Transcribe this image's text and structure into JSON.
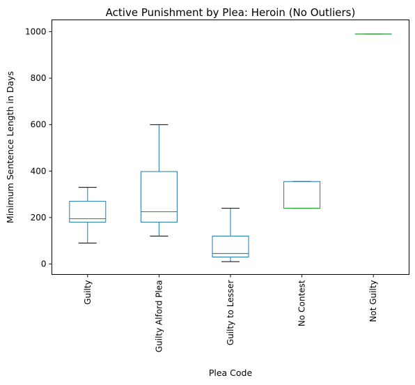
{
  "chart_data": {
    "type": "box",
    "title": "Active Punishment by Plea: Heroin (No Outliers)",
    "xlabel": "Plea Code",
    "ylabel": "Minimum Sentence Length in Days",
    "categories": [
      "Guilty",
      "Guilty Alford Plea",
      "Guilty to Lesser",
      "No Contest",
      "Not Guilty"
    ],
    "ylim": [
      -40,
      1040
    ],
    "yticks": [
      0,
      200,
      400,
      600,
      800,
      1000
    ],
    "grid": false,
    "box_color": "#1f77b4",
    "median_color": "#2ca02c",
    "whisker_cap_color": "#000000",
    "boxes": [
      {
        "category": "Guilty",
        "whislo": 90,
        "q1": 180,
        "median": 195,
        "q3": 270,
        "whishi": 330
      },
      {
        "category": "Guilty Alford Plea",
        "whislo": 120,
        "q1": 180,
        "median": 225,
        "q3": 398,
        "whishi": 600
      },
      {
        "category": "Guilty to Lesser",
        "whislo": 10,
        "q1": 30,
        "median": 45,
        "q3": 120,
        "whishi": 240
      },
      {
        "category": "No Contest",
        "whislo": 240,
        "q1": 240,
        "median": 240,
        "q3": 355,
        "whishi": 355
      },
      {
        "category": "Not Guilty",
        "whislo": 990,
        "q1": 990,
        "median": 990,
        "q3": 990,
        "whishi": 990
      }
    ]
  }
}
